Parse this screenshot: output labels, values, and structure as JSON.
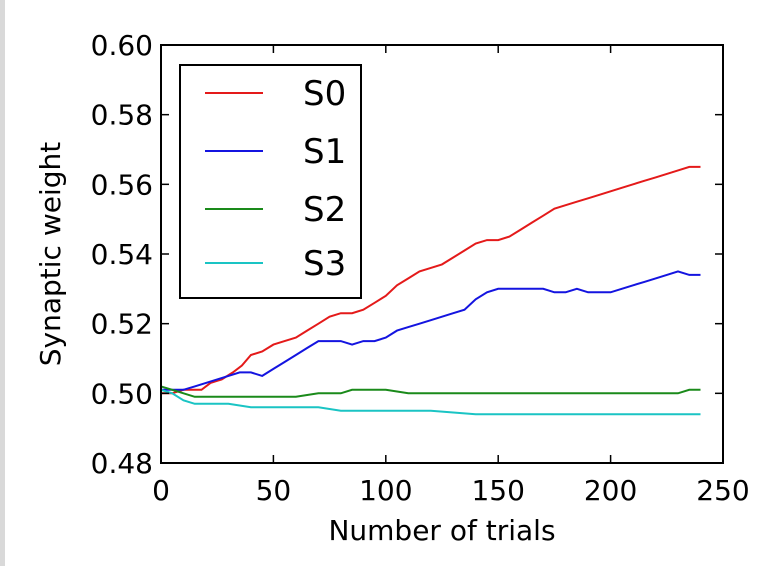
{
  "chart_data": {
    "type": "line",
    "title": "",
    "xlabel": "Number of trials",
    "ylabel": "Synaptic weight",
    "xlim": [
      0,
      250
    ],
    "ylim": [
      0.48,
      0.6
    ],
    "xticks": [
      0,
      50,
      100,
      150,
      200,
      250
    ],
    "yticks": [
      0.48,
      0.5,
      0.52,
      0.54,
      0.56,
      0.58,
      0.6
    ],
    "xtick_labels": [
      "0",
      "50",
      "100",
      "150",
      "200",
      "250"
    ],
    "ytick_labels": [
      "0.48",
      "0.50",
      "0.52",
      "0.54",
      "0.56",
      "0.58",
      "0.60"
    ],
    "grid": false,
    "legend_position": "top-left",
    "series": [
      {
        "name": "S0",
        "color": "#e41a1a",
        "points": [
          [
            0,
            0.5
          ],
          [
            5,
            0.5
          ],
          [
            10,
            0.501
          ],
          [
            18,
            0.501
          ],
          [
            22,
            0.503
          ],
          [
            27,
            0.504
          ],
          [
            32,
            0.506
          ],
          [
            36,
            0.508
          ],
          [
            40,
            0.511
          ],
          [
            45,
            0.512
          ],
          [
            50,
            0.514
          ],
          [
            55,
            0.515
          ],
          [
            60,
            0.516
          ],
          [
            65,
            0.518
          ],
          [
            70,
            0.52
          ],
          [
            75,
            0.522
          ],
          [
            80,
            0.523
          ],
          [
            85,
            0.523
          ],
          [
            90,
            0.524
          ],
          [
            95,
            0.526
          ],
          [
            100,
            0.528
          ],
          [
            105,
            0.531
          ],
          [
            110,
            0.533
          ],
          [
            115,
            0.535
          ],
          [
            120,
            0.536
          ],
          [
            125,
            0.537
          ],
          [
            130,
            0.539
          ],
          [
            135,
            0.541
          ],
          [
            140,
            0.543
          ],
          [
            145,
            0.544
          ],
          [
            150,
            0.544
          ],
          [
            155,
            0.545
          ],
          [
            160,
            0.547
          ],
          [
            165,
            0.549
          ],
          [
            170,
            0.551
          ],
          [
            175,
            0.553
          ],
          [
            180,
            0.554
          ],
          [
            185,
            0.555
          ],
          [
            190,
            0.556
          ],
          [
            195,
            0.557
          ],
          [
            200,
            0.558
          ],
          [
            205,
            0.559
          ],
          [
            210,
            0.56
          ],
          [
            215,
            0.561
          ],
          [
            220,
            0.562
          ],
          [
            225,
            0.563
          ],
          [
            230,
            0.564
          ],
          [
            235,
            0.565
          ],
          [
            240,
            0.565
          ]
        ]
      },
      {
        "name": "S1",
        "color": "#1414e0",
        "points": [
          [
            0,
            0.501
          ],
          [
            5,
            0.501
          ],
          [
            10,
            0.501
          ],
          [
            15,
            0.502
          ],
          [
            20,
            0.503
          ],
          [
            25,
            0.504
          ],
          [
            30,
            0.505
          ],
          [
            35,
            0.506
          ],
          [
            40,
            0.506
          ],
          [
            45,
            0.505
          ],
          [
            50,
            0.507
          ],
          [
            55,
            0.509
          ],
          [
            60,
            0.511
          ],
          [
            65,
            0.513
          ],
          [
            70,
            0.515
          ],
          [
            75,
            0.515
          ],
          [
            80,
            0.515
          ],
          [
            85,
            0.514
          ],
          [
            90,
            0.515
          ],
          [
            95,
            0.515
          ],
          [
            100,
            0.516
          ],
          [
            105,
            0.518
          ],
          [
            110,
            0.519
          ],
          [
            115,
            0.52
          ],
          [
            120,
            0.521
          ],
          [
            125,
            0.522
          ],
          [
            130,
            0.523
          ],
          [
            135,
            0.524
          ],
          [
            140,
            0.527
          ],
          [
            145,
            0.529
          ],
          [
            150,
            0.53
          ],
          [
            155,
            0.53
          ],
          [
            160,
            0.53
          ],
          [
            165,
            0.53
          ],
          [
            170,
            0.53
          ],
          [
            175,
            0.529
          ],
          [
            180,
            0.529
          ],
          [
            185,
            0.53
          ],
          [
            190,
            0.529
          ],
          [
            195,
            0.529
          ],
          [
            200,
            0.529
          ],
          [
            205,
            0.53
          ],
          [
            210,
            0.531
          ],
          [
            215,
            0.532
          ],
          [
            220,
            0.533
          ],
          [
            225,
            0.534
          ],
          [
            230,
            0.535
          ],
          [
            235,
            0.534
          ],
          [
            240,
            0.534
          ]
        ]
      },
      {
        "name": "S2",
        "color": "#1a8a1a",
        "points": [
          [
            0,
            0.502
          ],
          [
            5,
            0.501
          ],
          [
            10,
            0.5
          ],
          [
            15,
            0.499
          ],
          [
            20,
            0.499
          ],
          [
            25,
            0.499
          ],
          [
            30,
            0.499
          ],
          [
            40,
            0.499
          ],
          [
            50,
            0.499
          ],
          [
            60,
            0.499
          ],
          [
            70,
            0.5
          ],
          [
            80,
            0.5
          ],
          [
            85,
            0.501
          ],
          [
            90,
            0.501
          ],
          [
            100,
            0.501
          ],
          [
            110,
            0.5
          ],
          [
            120,
            0.5
          ],
          [
            140,
            0.5
          ],
          [
            160,
            0.5
          ],
          [
            180,
            0.5
          ],
          [
            200,
            0.5
          ],
          [
            220,
            0.5
          ],
          [
            230,
            0.5
          ],
          [
            235,
            0.501
          ],
          [
            240,
            0.501
          ]
        ]
      },
      {
        "name": "S3",
        "color": "#1ac4c4",
        "points": [
          [
            0,
            0.501
          ],
          [
            5,
            0.5
          ],
          [
            10,
            0.498
          ],
          [
            15,
            0.497
          ],
          [
            20,
            0.497
          ],
          [
            30,
            0.497
          ],
          [
            40,
            0.496
          ],
          [
            50,
            0.496
          ],
          [
            60,
            0.496
          ],
          [
            70,
            0.496
          ],
          [
            80,
            0.495
          ],
          [
            90,
            0.495
          ],
          [
            100,
            0.495
          ],
          [
            120,
            0.495
          ],
          [
            140,
            0.494
          ],
          [
            160,
            0.494
          ],
          [
            180,
            0.494
          ],
          [
            200,
            0.494
          ],
          [
            220,
            0.494
          ],
          [
            240,
            0.494
          ]
        ]
      }
    ]
  }
}
